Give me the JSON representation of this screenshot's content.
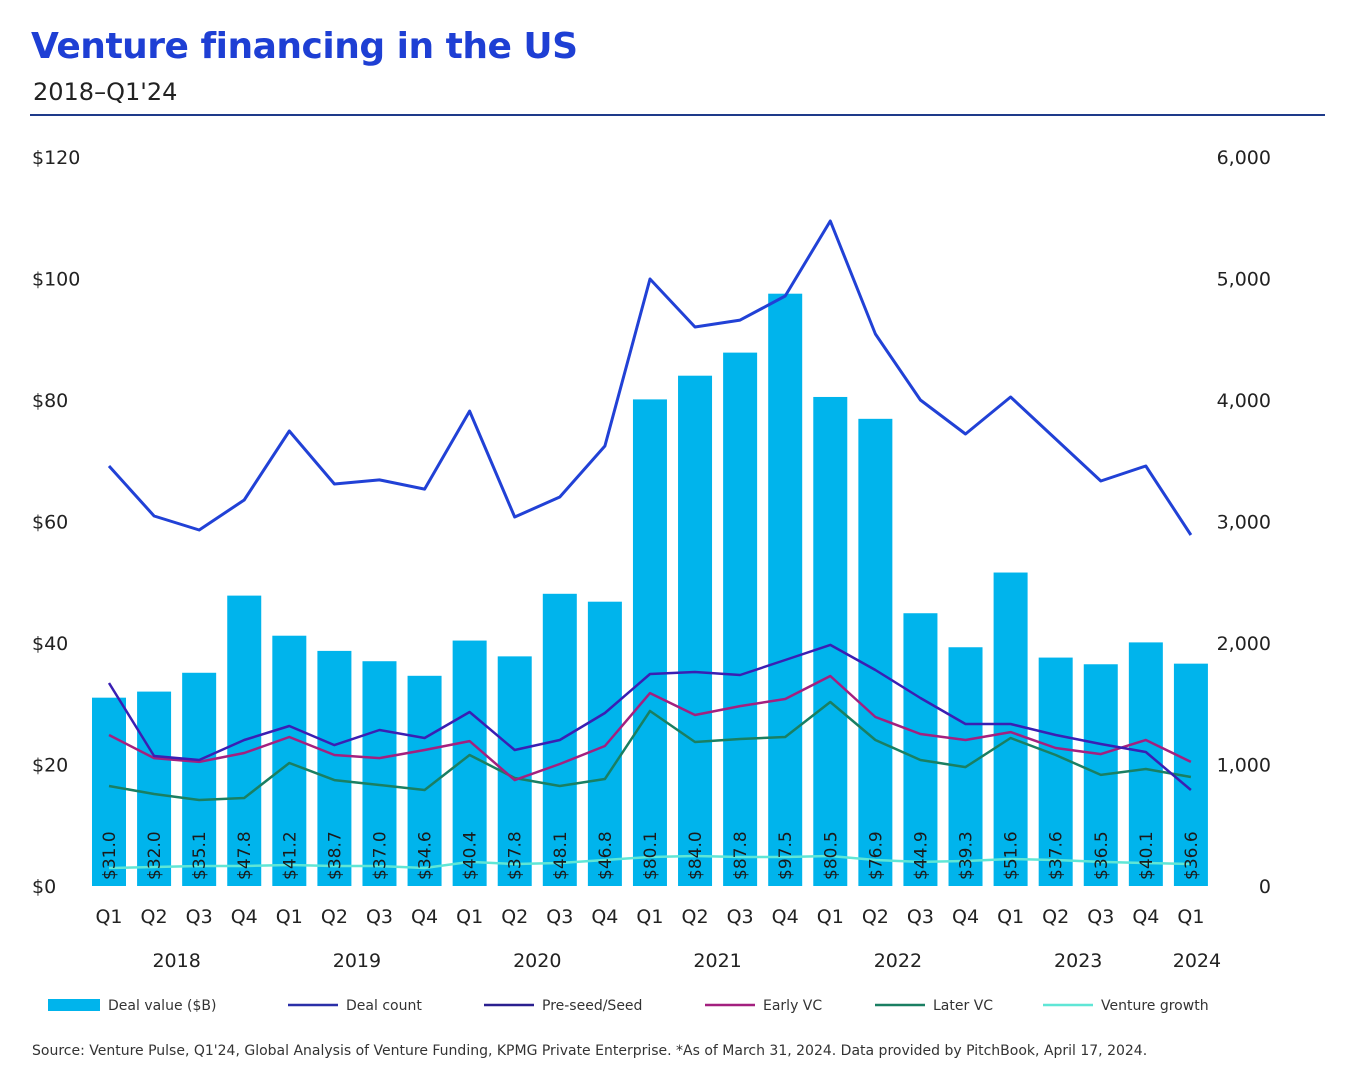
{
  "title": "Venture financing in the US",
  "subtitle": "2018–Q1'24",
  "source": "Source: Venture Pulse, Q1'24, Global Analysis of Venture Funding, KPMG Private Enterprise. *As of March 31, 2024. Data provided by PitchBook, April 17, 2024.",
  "chart_data": {
    "type": "bar+line",
    "categories": [
      "Q1",
      "Q2",
      "Q3",
      "Q4",
      "Q1",
      "Q2",
      "Q3",
      "Q4",
      "Q1",
      "Q2",
      "Q3",
      "Q4",
      "Q1",
      "Q2",
      "Q3",
      "Q4",
      "Q1",
      "Q2",
      "Q3",
      "Q4",
      "Q1",
      "Q2",
      "Q3",
      "Q4",
      "Q1"
    ],
    "years": [
      {
        "label": "2018",
        "span": [
          0,
          3
        ]
      },
      {
        "label": "2019",
        "span": [
          4,
          7
        ]
      },
      {
        "label": "2020",
        "span": [
          8,
          11
        ]
      },
      {
        "label": "2021",
        "span": [
          12,
          15
        ]
      },
      {
        "label": "2022",
        "span": [
          16,
          19
        ]
      },
      {
        "label": "2023",
        "span": [
          20,
          23
        ]
      },
      {
        "label": "2024",
        "span": [
          24,
          24
        ]
      }
    ],
    "y_left": {
      "ylim": [
        0,
        120
      ],
      "ticks": [
        "$0",
        "$20",
        "$40",
        "$60",
        "$80",
        "$100",
        "$120"
      ]
    },
    "y_right": {
      "ylim": [
        0,
        6000
      ],
      "ticks": [
        "0",
        "1,000",
        "2,000",
        "3,000",
        "4,000",
        "5,000",
        "6,000"
      ]
    },
    "grid": false,
    "legend_position": "bottom",
    "bars": {
      "name": "Deal value ($B)",
      "axis": "left",
      "color": "#00b4ec",
      "values": [
        31.0,
        32.0,
        35.1,
        47.8,
        41.2,
        38.7,
        37.0,
        34.6,
        40.4,
        37.8,
        48.1,
        46.8,
        80.1,
        84.0,
        87.8,
        97.5,
        80.5,
        76.9,
        44.9,
        39.3,
        51.6,
        37.6,
        36.5,
        40.1,
        36.6
      ],
      "labels": [
        "$31.0",
        "$32.0",
        "$35.1",
        "$47.8",
        "$41.2",
        "$38.7",
        "$37.0",
        "$34.6",
        "$40.4",
        "$37.8",
        "$48.1",
        "$46.8",
        "$80.1",
        "$84.0",
        "$87.8",
        "$97.5",
        "$80.5",
        "$76.9",
        "$44.9",
        "$39.3",
        "$51.6",
        "$37.6",
        "$36.5",
        "$40.1",
        "$36.6"
      ]
    },
    "series": [
      {
        "name": "Deal count",
        "axis": "right",
        "color": "#2141d6",
        "legend_color": "#2a2fa8",
        "values": [
          3457,
          3045,
          2930,
          3177,
          3745,
          3309,
          3342,
          3267,
          3909,
          3037,
          3202,
          3621,
          4996,
          4601,
          4658,
          4856,
          5473,
          4543,
          4000,
          3720,
          4025,
          3679,
          3333,
          3457,
          2889
        ]
      },
      {
        "name": "Pre-seed/Seed",
        "axis": "right",
        "color": "#3a1fb3",
        "legend_color": "#2a1f8f",
        "values": [
          1671,
          1070,
          1037,
          1202,
          1317,
          1160,
          1284,
          1218,
          1432,
          1119,
          1202,
          1424,
          1745,
          1761,
          1737,
          1860,
          1984,
          1778,
          1547,
          1333,
          1333,
          1243,
          1169,
          1103,
          790
        ]
      },
      {
        "name": "Early VC",
        "axis": "right",
        "color": "#a3207f",
        "values": [
          1243,
          1053,
          1021,
          1095,
          1226,
          1078,
          1053,
          1119,
          1193,
          872,
          1004,
          1152,
          1588,
          1407,
          1481,
          1539,
          1728,
          1391,
          1251,
          1202,
          1267,
          1136,
          1086,
          1202,
          1021
        ]
      },
      {
        "name": "Later VC",
        "axis": "right",
        "color": "#1a7f62",
        "values": [
          823,
          757,
          708,
          724,
          1012,
          872,
          831,
          790,
          1078,
          889,
          823,
          881,
          1440,
          1185,
          1210,
          1226,
          1514,
          1202,
          1037,
          979,
          1218,
          1078,
          914,
          963,
          897
        ]
      },
      {
        "name": "Venture growth",
        "axis": "right",
        "color": "#5fe6d6",
        "values": [
          148,
          156,
          165,
          165,
          173,
          165,
          165,
          148,
          198,
          181,
          189,
          214,
          239,
          247,
          239,
          239,
          247,
          214,
          198,
          206,
          222,
          214,
          198,
          189,
          181
        ]
      }
    ]
  }
}
